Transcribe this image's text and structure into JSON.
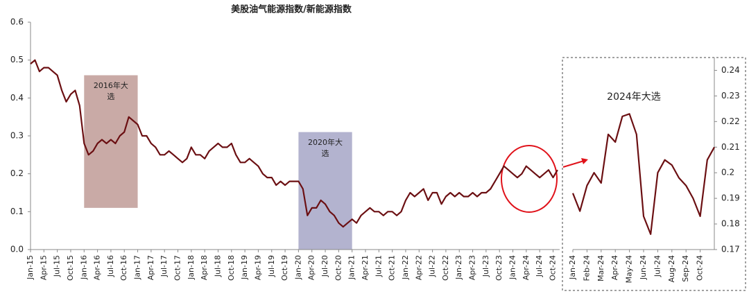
{
  "chart_data": [
    {
      "type": "line",
      "title": "美股油气能源指数/新能源指数",
      "categories": [
        "Jan-15",
        null,
        null,
        "Apr-15",
        null,
        null,
        "Jul-15",
        null,
        null,
        "Oct-15",
        null,
        null,
        "Jan-16",
        null,
        null,
        "Apr-16",
        null,
        null,
        "Jul-16",
        null,
        null,
        "Oct-16",
        null,
        null,
        "Jan-17",
        null,
        null,
        "Apr-17",
        null,
        null,
        "Jul-17",
        null,
        null,
        "Oct-17",
        null,
        null,
        "Jan-18",
        null,
        null,
        "Apr-18",
        null,
        null,
        "Jul-18",
        null,
        null,
        "Oct-18",
        null,
        null,
        "Jan-19",
        null,
        null,
        "Apr-19",
        null,
        null,
        "Jul-19",
        null,
        null,
        "Oct-19",
        null,
        null,
        "Jan-20",
        null,
        null,
        "Apr-20",
        null,
        null,
        "Jul-20",
        null,
        null,
        "Oct-20",
        null,
        null,
        "Jan-21",
        null,
        null,
        "Apr-21",
        null,
        null,
        "Jul-21",
        null,
        null,
        "Oct-21",
        null,
        null,
        "Jan-22",
        null,
        null,
        "Apr-22",
        null,
        null,
        "Jul-22",
        null,
        null,
        "Oct-22",
        null,
        null,
        "Jan-23",
        null,
        null,
        "Apr-23",
        null,
        null,
        "Jul-23",
        null,
        null,
        "Oct-23",
        null,
        null,
        "Jan-24",
        null,
        null,
        "Apr-24",
        null,
        null,
        "Jul-24",
        null,
        null,
        "Oct-24",
        null
      ],
      "values": [
        0.49,
        0.5,
        0.47,
        0.48,
        0.48,
        0.47,
        0.46,
        0.42,
        0.39,
        0.41,
        0.42,
        0.38,
        0.28,
        0.25,
        0.26,
        0.28,
        0.29,
        0.28,
        0.29,
        0.28,
        0.3,
        0.31,
        0.35,
        0.34,
        0.33,
        0.3,
        0.3,
        0.28,
        0.27,
        0.25,
        0.25,
        0.26,
        0.25,
        0.24,
        0.23,
        0.24,
        0.27,
        0.25,
        0.25,
        0.24,
        0.26,
        0.27,
        0.28,
        0.27,
        0.27,
        0.28,
        0.25,
        0.23,
        0.23,
        0.24,
        0.23,
        0.22,
        0.2,
        0.19,
        0.19,
        0.17,
        0.18,
        0.17,
        0.18,
        0.18,
        0.18,
        0.16,
        0.09,
        0.11,
        0.11,
        0.13,
        0.12,
        0.1,
        0.09,
        0.07,
        0.06,
        0.07,
        0.08,
        0.07,
        0.09,
        0.1,
        0.11,
        0.1,
        0.1,
        0.09,
        0.1,
        0.1,
        0.09,
        0.1,
        0.13,
        0.15,
        0.14,
        0.15,
        0.16,
        0.13,
        0.15,
        0.15,
        0.12,
        0.14,
        0.15,
        0.14,
        0.15,
        0.14,
        0.14,
        0.15,
        0.14,
        0.15,
        0.15,
        0.16,
        0.18,
        0.2,
        0.22,
        0.21,
        0.2,
        0.19,
        0.2,
        0.22,
        0.21,
        0.2,
        0.19,
        0.2,
        0.21,
        0.19,
        0.21
      ],
      "color": "#6b0f12",
      "ylim": [
        0,
        0.6
      ],
      "yticks": [
        {
          "value": 0,
          "label": "0.0"
        },
        0.1,
        0.2,
        0.3,
        0.4,
        0.5,
        0.6
      ],
      "highlights": [
        {
          "label": "2016年大选",
          "start": "Jan-16",
          "end": "Jan-17",
          "ylim": [
            0.11,
            0.46
          ],
          "color": "#c9aaa6"
        },
        {
          "label": "2020年大选",
          "start": "Jan-20",
          "end": "Jan-21",
          "ylim": [
            0,
            0.31
          ],
          "color": "#b3b3cf"
        }
      ]
    },
    {
      "type": "line",
      "title": "2024年大选",
      "categories": [
        "Jan-24",
        null,
        "Feb-24",
        null,
        "Mar-24",
        null,
        "Apr-24",
        null,
        "May-24",
        null,
        "Jun-24",
        null,
        "Jul-24",
        null,
        "Aug-24",
        null,
        "Sep-24",
        null,
        "Oct-24",
        null,
        null
      ],
      "values": [
        0.192,
        0.185,
        0.195,
        0.2,
        0.196,
        0.215,
        0.212,
        0.222,
        0.223,
        0.215,
        0.183,
        0.176,
        0.2,
        0.205,
        0.203,
        0.198,
        0.195,
        0.19,
        0.183,
        0.205,
        0.21
      ],
      "color": "#6b0f12",
      "ylim": [
        0.17,
        0.245
      ],
      "yticks": [
        0.17,
        0.18,
        0.19,
        0.2,
        0.21,
        0.22,
        0.23,
        0.24
      ]
    }
  ]
}
